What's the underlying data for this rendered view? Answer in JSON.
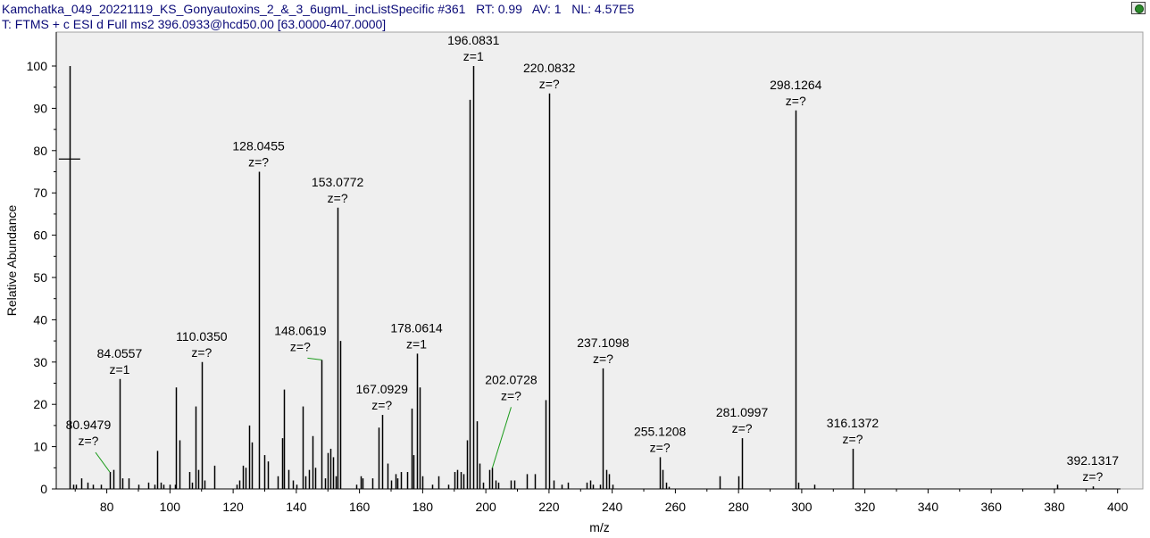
{
  "header": {
    "line1": "Kamchatka_049_20221119_KS_Gonyautoxins_2_&_3_6ugmL_incListSpecific #361   RT: 0.99   AV: 1   NL: 4.57E5",
    "line2": "T: FTMS + c ESI d Full ms2 396.0933@hcd50.00 [63.0000-407.0000]"
  },
  "toolbar": {
    "icon": "sync-icon"
  },
  "chart_data": {
    "type": "bar",
    "xlabel": "m/z",
    "ylabel": "Relative Abundance",
    "xlim": [
      64,
      408
    ],
    "ylim": [
      0,
      105
    ],
    "xticks": [
      80,
      100,
      120,
      140,
      160,
      180,
      200,
      220,
      240,
      260,
      280,
      300,
      320,
      340,
      360,
      380,
      400
    ],
    "yticks": [
      0,
      10,
      20,
      30,
      40,
      50,
      60,
      70,
      80,
      90,
      100
    ],
    "cursor": {
      "x": 68.2,
      "y": 78
    },
    "peaks": [
      {
        "mz": 68.2,
        "intensity": 100
      },
      {
        "mz": 69.3,
        "intensity": 1
      },
      {
        "mz": 70.2,
        "intensity": 1
      },
      {
        "mz": 72.0,
        "intensity": 2.5
      },
      {
        "mz": 74.0,
        "intensity": 1.5
      },
      {
        "mz": 75.5,
        "intensity": 1
      },
      {
        "mz": 78.0,
        "intensity": 1
      },
      {
        "mz": 80.9479,
        "intensity": 4,
        "label": "80.9479",
        "z": "z=?"
      },
      {
        "mz": 82.0,
        "intensity": 4.5
      },
      {
        "mz": 84.0557,
        "intensity": 26,
        "label": "84.0557",
        "z": "z=1"
      },
      {
        "mz": 85.0,
        "intensity": 2.5
      },
      {
        "mz": 87.0,
        "intensity": 2.5
      },
      {
        "mz": 90.0,
        "intensity": 1
      },
      {
        "mz": 93.0,
        "intensity": 1.5
      },
      {
        "mz": 95.0,
        "intensity": 1
      },
      {
        "mz": 96.0,
        "intensity": 9
      },
      {
        "mz": 97.0,
        "intensity": 1.5
      },
      {
        "mz": 98.0,
        "intensity": 1
      },
      {
        "mz": 100.0,
        "intensity": 1
      },
      {
        "mz": 101.5,
        "intensity": 1
      },
      {
        "mz": 102.0,
        "intensity": 24
      },
      {
        "mz": 103.0,
        "intensity": 11.5
      },
      {
        "mz": 106.0,
        "intensity": 4
      },
      {
        "mz": 107.0,
        "intensity": 1.5
      },
      {
        "mz": 108.0,
        "intensity": 19.5
      },
      {
        "mz": 109.0,
        "intensity": 4.5
      },
      {
        "mz": 110.035,
        "intensity": 30,
        "label": "110.0350",
        "z": "z=?"
      },
      {
        "mz": 111.0,
        "intensity": 2
      },
      {
        "mz": 114.0,
        "intensity": 5.5
      },
      {
        "mz": 121.0,
        "intensity": 1
      },
      {
        "mz": 122.0,
        "intensity": 2
      },
      {
        "mz": 123.0,
        "intensity": 5.5
      },
      {
        "mz": 124.0,
        "intensity": 5
      },
      {
        "mz": 125.0,
        "intensity": 15
      },
      {
        "mz": 126.0,
        "intensity": 11
      },
      {
        "mz": 128.0455,
        "intensity": 75,
        "label": "128.0455",
        "z": "z=?"
      },
      {
        "mz": 130.0,
        "intensity": 8
      },
      {
        "mz": 131.0,
        "intensity": 6.5
      },
      {
        "mz": 134.0,
        "intensity": 3
      },
      {
        "mz": 135.5,
        "intensity": 12
      },
      {
        "mz": 136.0,
        "intensity": 23.5
      },
      {
        "mz": 137.5,
        "intensity": 4.5
      },
      {
        "mz": 139.0,
        "intensity": 2
      },
      {
        "mz": 140.0,
        "intensity": 1
      },
      {
        "mz": 142.0,
        "intensity": 19.5
      },
      {
        "mz": 143.0,
        "intensity": 3
      },
      {
        "mz": 144.0,
        "intensity": 4.5
      },
      {
        "mz": 145.0,
        "intensity": 12.5
      },
      {
        "mz": 146.0,
        "intensity": 5
      },
      {
        "mz": 148.0619,
        "intensity": 30.5,
        "label": "148.0619",
        "z": "z=?"
      },
      {
        "mz": 149.0,
        "intensity": 2.5
      },
      {
        "mz": 150.0,
        "intensity": 8.5
      },
      {
        "mz": 150.7,
        "intensity": 9.5
      },
      {
        "mz": 151.5,
        "intensity": 7.5
      },
      {
        "mz": 152.5,
        "intensity": 3
      },
      {
        "mz": 153.0772,
        "intensity": 66.5,
        "label": "153.0772",
        "z": "z=?"
      },
      {
        "mz": 154.0,
        "intensity": 35
      },
      {
        "mz": 159.0,
        "intensity": 1
      },
      {
        "mz": 160.5,
        "intensity": 3
      },
      {
        "mz": 161.0,
        "intensity": 2.5
      },
      {
        "mz": 164.0,
        "intensity": 2.5
      },
      {
        "mz": 166.0,
        "intensity": 14.5
      },
      {
        "mz": 167.0929,
        "intensity": 17.5,
        "label": "167.0929",
        "z": "z=?"
      },
      {
        "mz": 169.0,
        "intensity": 6
      },
      {
        "mz": 170.0,
        "intensity": 2
      },
      {
        "mz": 171.5,
        "intensity": 3.5
      },
      {
        "mz": 172.0,
        "intensity": 2.5
      },
      {
        "mz": 173.0,
        "intensity": 4
      },
      {
        "mz": 175.0,
        "intensity": 4
      },
      {
        "mz": 176.5,
        "intensity": 19
      },
      {
        "mz": 177.0,
        "intensity": 8
      },
      {
        "mz": 178.0614,
        "intensity": 32,
        "label": "178.0614",
        "z": "z=1"
      },
      {
        "mz": 179.0,
        "intensity": 24
      },
      {
        "mz": 180.0,
        "intensity": 3
      },
      {
        "mz": 183.0,
        "intensity": 1
      },
      {
        "mz": 185.0,
        "intensity": 3
      },
      {
        "mz": 188.0,
        "intensity": 1
      },
      {
        "mz": 190.0,
        "intensity": 4
      },
      {
        "mz": 191.0,
        "intensity": 4.5
      },
      {
        "mz": 192.0,
        "intensity": 4
      },
      {
        "mz": 193.0,
        "intensity": 3.5
      },
      {
        "mz": 194.0,
        "intensity": 11.5
      },
      {
        "mz": 195.0,
        "intensity": 92
      },
      {
        "mz": 196.0831,
        "intensity": 100,
        "label": "196.0831",
        "z": "z=1"
      },
      {
        "mz": 197.0,
        "intensity": 16
      },
      {
        "mz": 198.0,
        "intensity": 6
      },
      {
        "mz": 199.0,
        "intensity": 1.5
      },
      {
        "mz": 201.0,
        "intensity": 4.5
      },
      {
        "mz": 202.0728,
        "intensity": 5,
        "label": "202.0728",
        "z": "z=?"
      },
      {
        "mz": 203.0,
        "intensity": 2
      },
      {
        "mz": 204.0,
        "intensity": 1.5
      },
      {
        "mz": 208.0,
        "intensity": 2
      },
      {
        "mz": 209.0,
        "intensity": 2
      },
      {
        "mz": 213.0,
        "intensity": 3.5
      },
      {
        "mz": 215.5,
        "intensity": 3.5
      },
      {
        "mz": 219.0,
        "intensity": 21
      },
      {
        "mz": 220.0832,
        "intensity": 93.5,
        "label": "220.0832",
        "z": "z=?"
      },
      {
        "mz": 221.5,
        "intensity": 2
      },
      {
        "mz": 224.0,
        "intensity": 1
      },
      {
        "mz": 226.0,
        "intensity": 1.5
      },
      {
        "mz": 232.0,
        "intensity": 1.5
      },
      {
        "mz": 233.0,
        "intensity": 2
      },
      {
        "mz": 234.0,
        "intensity": 1
      },
      {
        "mz": 236.0,
        "intensity": 1
      },
      {
        "mz": 237.1098,
        "intensity": 28.5,
        "label": "237.1098",
        "z": "z=?"
      },
      {
        "mz": 238.0,
        "intensity": 4.5
      },
      {
        "mz": 239.0,
        "intensity": 3.5
      },
      {
        "mz": 240.0,
        "intensity": 1
      },
      {
        "mz": 255.1208,
        "intensity": 7.5,
        "label": "255.1208",
        "z": "z=?"
      },
      {
        "mz": 256.0,
        "intensity": 4.5
      },
      {
        "mz": 257.0,
        "intensity": 1.5
      },
      {
        "mz": 258.0,
        "intensity": 0.5
      },
      {
        "mz": 274.0,
        "intensity": 3
      },
      {
        "mz": 280.0,
        "intensity": 3
      },
      {
        "mz": 281.0997,
        "intensity": 12,
        "label": "281.0997",
        "z": "z=?"
      },
      {
        "mz": 298.1264,
        "intensity": 89.5,
        "label": "298.1264",
        "z": "z=?"
      },
      {
        "mz": 299.0,
        "intensity": 1.5
      },
      {
        "mz": 304.0,
        "intensity": 1
      },
      {
        "mz": 316.1372,
        "intensity": 9.5,
        "label": "316.1372",
        "z": "z=?"
      },
      {
        "mz": 381.0,
        "intensity": 1
      },
      {
        "mz": 392.1317,
        "intensity": 0.6,
        "label": "392.1317",
        "z": "z=?"
      }
    ]
  }
}
